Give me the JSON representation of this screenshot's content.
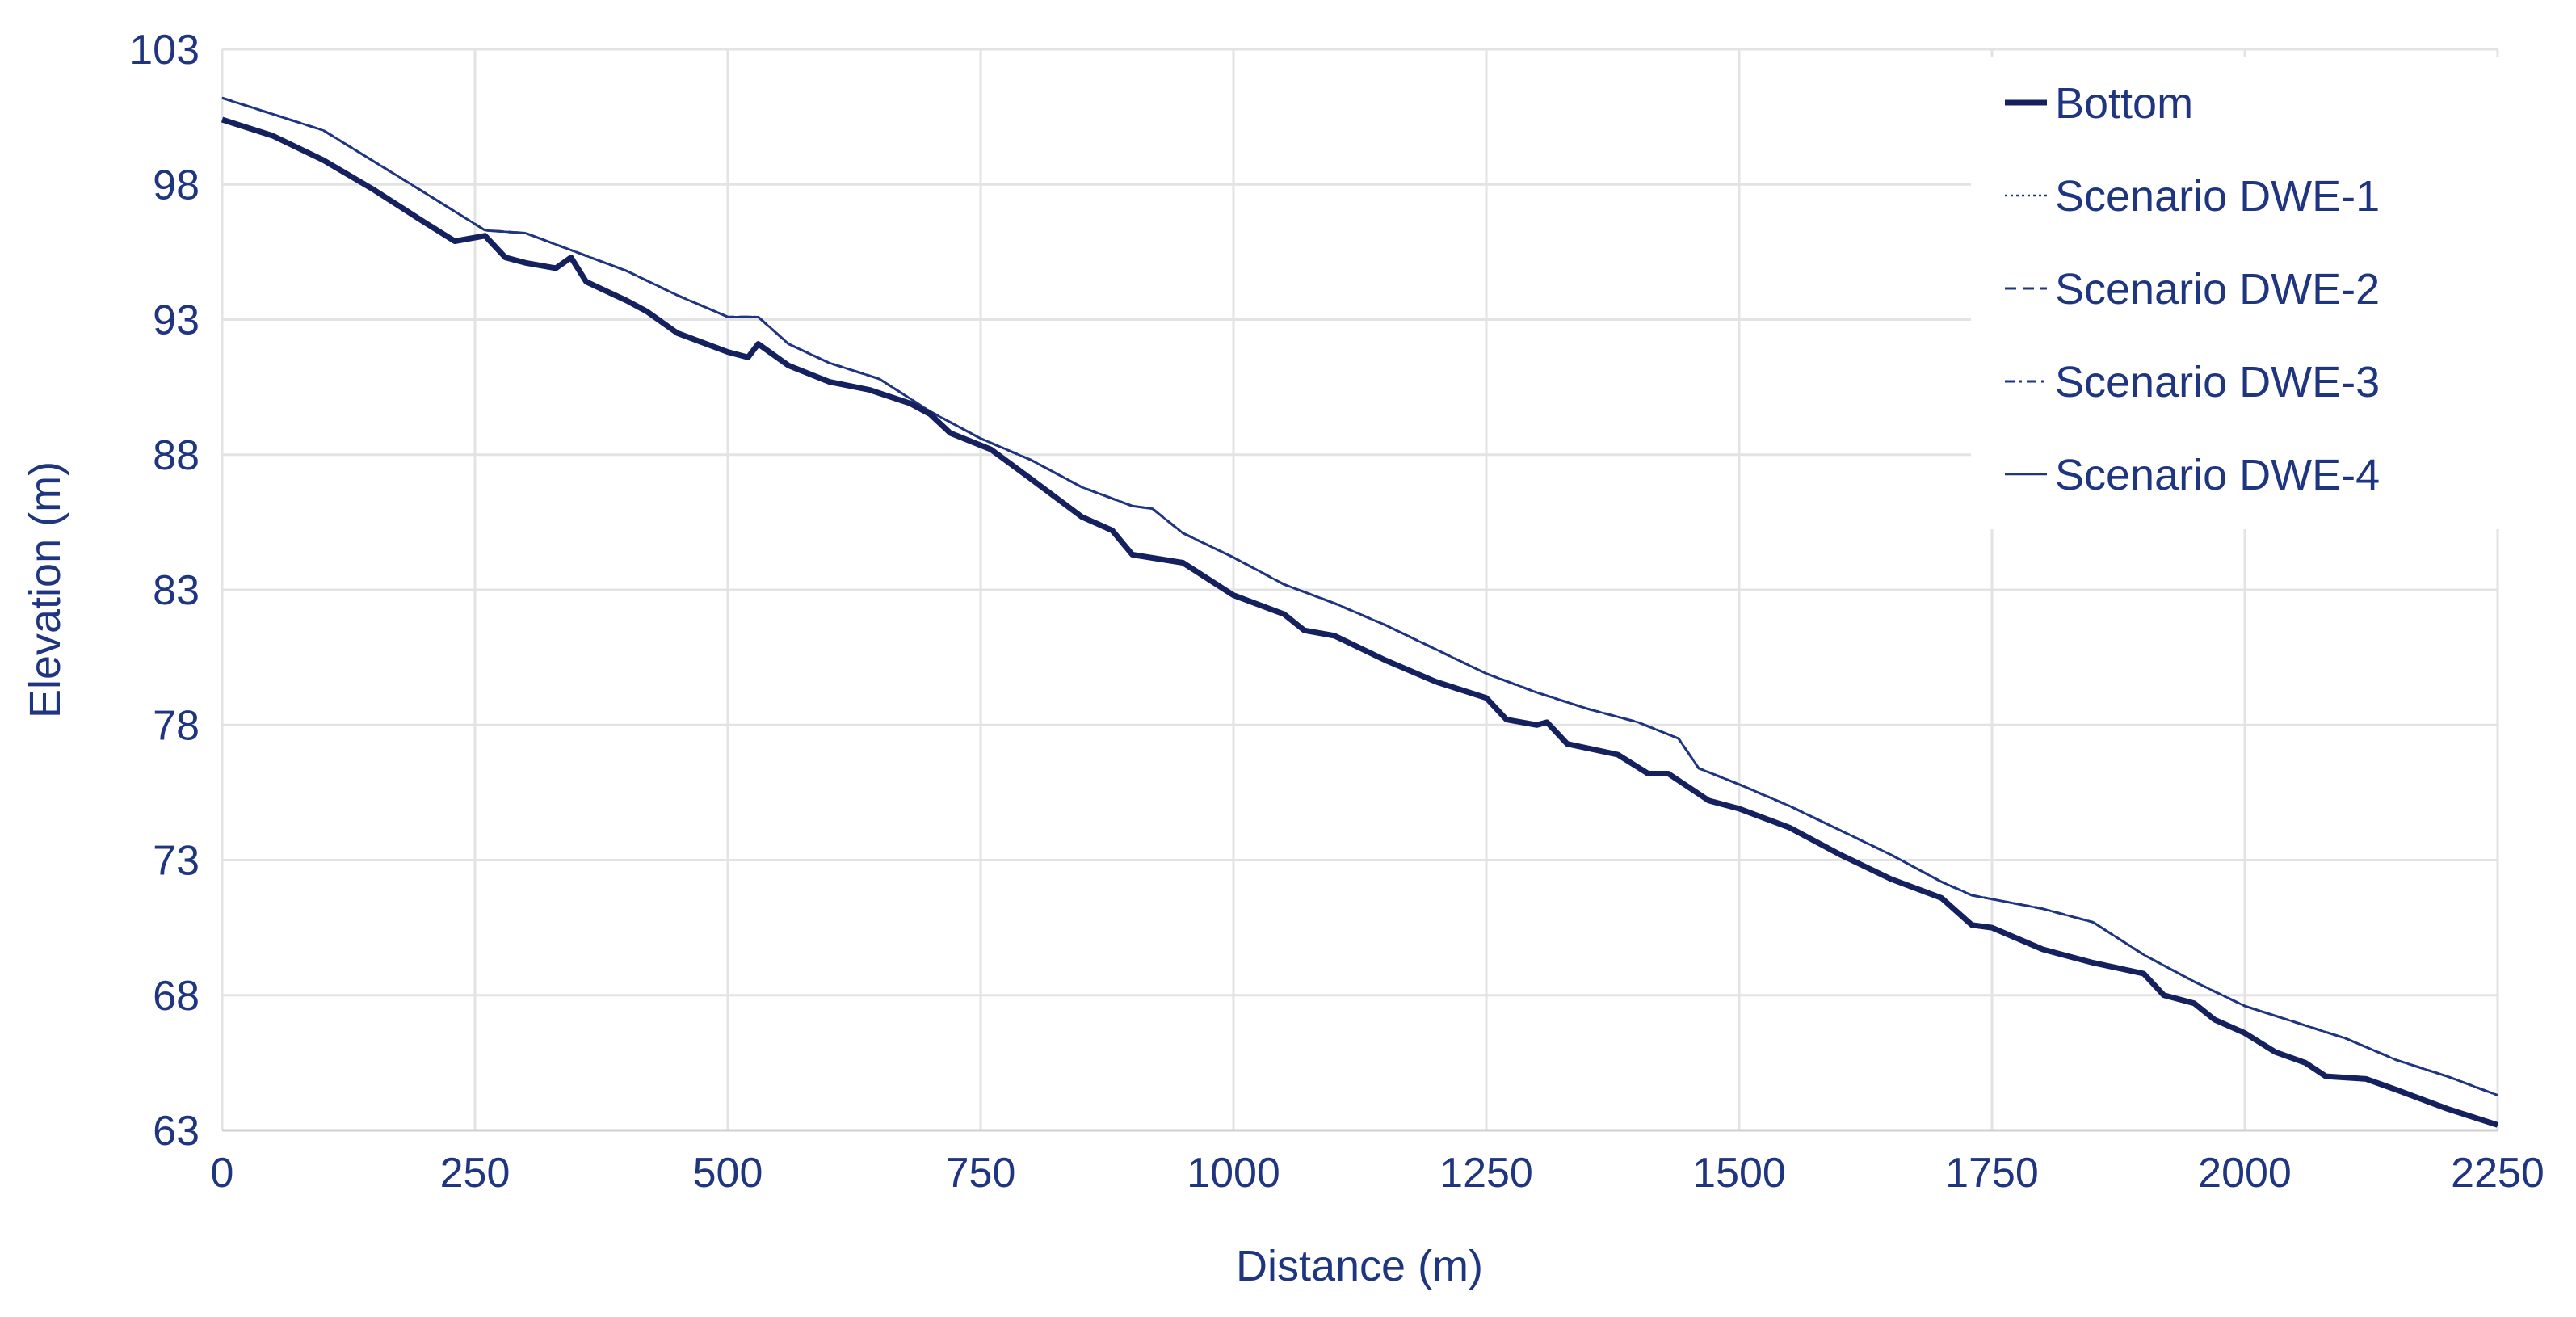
{
  "chart_data": {
    "type": "line",
    "x_label": "Distance (m)",
    "y_label": "Elevation (m)",
    "xlim": [
      0,
      2250
    ],
    "ylim": [
      63,
      103
    ],
    "xticks": [
      0,
      250,
      500,
      750,
      1000,
      1250,
      1500,
      1750,
      2000,
      2250
    ],
    "yticks": [
      63,
      68,
      73,
      78,
      83,
      88,
      93,
      98,
      103
    ],
    "grid": true,
    "legend": "upper right",
    "series": [
      {
        "name": "Bottom",
        "color": "#14215e",
        "style": "thick",
        "x": [
          0,
          50,
          100,
          150,
          200,
          230,
          260,
          280,
          300,
          330,
          345,
          360,
          400,
          420,
          450,
          500,
          520,
          530,
          560,
          600,
          640,
          680,
          700,
          720,
          760,
          800,
          850,
          880,
          900,
          950,
          1000,
          1050,
          1070,
          1100,
          1150,
          1200,
          1250,
          1270,
          1300,
          1310,
          1330,
          1380,
          1410,
          1430,
          1470,
          1500,
          1550,
          1600,
          1650,
          1700,
          1730,
          1750,
          1800,
          1850,
          1900,
          1920,
          1950,
          1970,
          2000,
          2030,
          2060,
          2080,
          2120,
          2150,
          2200,
          2250
        ],
        "values": [
          100.4,
          99.8,
          98.9,
          97.8,
          96.6,
          95.9,
          96.1,
          95.3,
          95.1,
          94.9,
          95.3,
          94.4,
          93.7,
          93.3,
          92.5,
          91.8,
          91.6,
          92.1,
          91.3,
          90.7,
          90.4,
          89.9,
          89.5,
          88.8,
          88.2,
          87.1,
          85.7,
          85.2,
          84.3,
          84.0,
          82.8,
          82.1,
          81.5,
          81.3,
          80.4,
          79.6,
          79.0,
          78.2,
          78.0,
          78.1,
          77.3,
          76.9,
          76.2,
          76.2,
          75.2,
          74.9,
          74.2,
          73.2,
          72.3,
          71.6,
          70.6,
          70.5,
          69.7,
          69.2,
          68.8,
          68.0,
          67.7,
          67.1,
          66.6,
          65.9,
          65.5,
          65.0,
          64.9,
          64.5,
          63.8,
          63.2
        ]
      },
      {
        "name": "Scenario DWE-1",
        "color": "#1f3580",
        "style": "dotted",
        "x": [
          0,
          100,
          200,
          260,
          300,
          350,
          400,
          450,
          500,
          530,
          560,
          600,
          650,
          700,
          750,
          800,
          850,
          900,
          920,
          950,
          1000,
          1050,
          1100,
          1150,
          1200,
          1250,
          1300,
          1350,
          1400,
          1440,
          1460,
          1500,
          1550,
          1600,
          1650,
          1700,
          1730,
          1800,
          1850,
          1900,
          1950,
          2000,
          2050,
          2100,
          2150,
          2200,
          2250
        ],
        "values": [
          101.2,
          100.0,
          97.7,
          96.3,
          96.2,
          95.5,
          94.8,
          93.9,
          93.1,
          93.1,
          92.1,
          91.4,
          90.8,
          89.6,
          88.6,
          87.8,
          86.8,
          86.1,
          86.0,
          85.1,
          84.2,
          83.2,
          82.5,
          81.7,
          80.8,
          79.9,
          79.2,
          78.6,
          78.1,
          77.5,
          76.4,
          75.8,
          75.0,
          74.1,
          73.2,
          72.2,
          71.7,
          71.2,
          70.7,
          69.5,
          68.5,
          67.6,
          67.0,
          66.4,
          65.6,
          65.0,
          64.3
        ]
      },
      {
        "name": "Scenario DWE-2",
        "color": "#1f3580",
        "style": "dashed",
        "x": [
          0,
          100,
          200,
          260,
          300,
          350,
          400,
          450,
          500,
          530,
          560,
          600,
          650,
          700,
          750,
          800,
          850,
          900,
          920,
          950,
          1000,
          1050,
          1100,
          1150,
          1200,
          1250,
          1300,
          1350,
          1400,
          1440,
          1460,
          1500,
          1550,
          1600,
          1650,
          1700,
          1730,
          1800,
          1850,
          1900,
          1950,
          2000,
          2050,
          2100,
          2150,
          2200,
          2250
        ],
        "values": [
          101.2,
          100.0,
          97.7,
          96.3,
          96.2,
          95.5,
          94.8,
          93.9,
          93.1,
          93.1,
          92.1,
          91.4,
          90.8,
          89.6,
          88.6,
          87.8,
          86.8,
          86.1,
          86.0,
          85.1,
          84.2,
          83.2,
          82.5,
          81.7,
          80.8,
          79.9,
          79.2,
          78.6,
          78.1,
          77.5,
          76.4,
          75.8,
          75.0,
          74.1,
          73.2,
          72.2,
          71.7,
          71.2,
          70.7,
          69.5,
          68.5,
          67.6,
          67.0,
          66.4,
          65.6,
          65.0,
          64.3
        ]
      },
      {
        "name": "Scenario DWE-3",
        "color": "#1f3580",
        "style": "dash-dot",
        "x": [
          0,
          100,
          200,
          260,
          300,
          350,
          400,
          450,
          500,
          530,
          560,
          600,
          650,
          700,
          750,
          800,
          850,
          900,
          920,
          950,
          1000,
          1050,
          1100,
          1150,
          1200,
          1250,
          1300,
          1350,
          1400,
          1440,
          1460,
          1500,
          1550,
          1600,
          1650,
          1700,
          1730,
          1800,
          1850,
          1900,
          1950,
          2000,
          2050,
          2100,
          2150,
          2200,
          2250
        ],
        "values": [
          101.2,
          100.0,
          97.7,
          96.3,
          96.2,
          95.5,
          94.8,
          93.9,
          93.1,
          93.1,
          92.1,
          91.4,
          90.8,
          89.6,
          88.6,
          87.8,
          86.8,
          86.1,
          86.0,
          85.1,
          84.2,
          83.2,
          82.5,
          81.7,
          80.8,
          79.9,
          79.2,
          78.6,
          78.1,
          77.5,
          76.4,
          75.8,
          75.0,
          74.1,
          73.2,
          72.2,
          71.7,
          71.2,
          70.7,
          69.5,
          68.5,
          67.6,
          67.0,
          66.4,
          65.6,
          65.0,
          64.3
        ]
      },
      {
        "name": "Scenario DWE-4",
        "color": "#1f3580",
        "style": "solid",
        "x": [
          0,
          100,
          200,
          260,
          300,
          350,
          400,
          450,
          500,
          530,
          560,
          600,
          650,
          700,
          750,
          800,
          850,
          900,
          920,
          950,
          1000,
          1050,
          1100,
          1150,
          1200,
          1250,
          1300,
          1350,
          1400,
          1440,
          1460,
          1500,
          1550,
          1600,
          1650,
          1700,
          1730,
          1800,
          1850,
          1900,
          1950,
          2000,
          2050,
          2100,
          2150,
          2200,
          2250
        ],
        "values": [
          101.2,
          100.0,
          97.7,
          96.3,
          96.2,
          95.5,
          94.8,
          93.9,
          93.1,
          93.1,
          92.1,
          91.4,
          90.8,
          89.6,
          88.6,
          87.8,
          86.8,
          86.1,
          86.0,
          85.1,
          84.2,
          83.2,
          82.5,
          81.7,
          80.8,
          79.9,
          79.2,
          78.6,
          78.1,
          77.5,
          76.4,
          75.8,
          75.0,
          74.1,
          73.2,
          72.2,
          71.7,
          71.2,
          70.7,
          69.5,
          68.5,
          67.6,
          67.0,
          66.4,
          65.6,
          65.0,
          64.3
        ]
      }
    ]
  }
}
